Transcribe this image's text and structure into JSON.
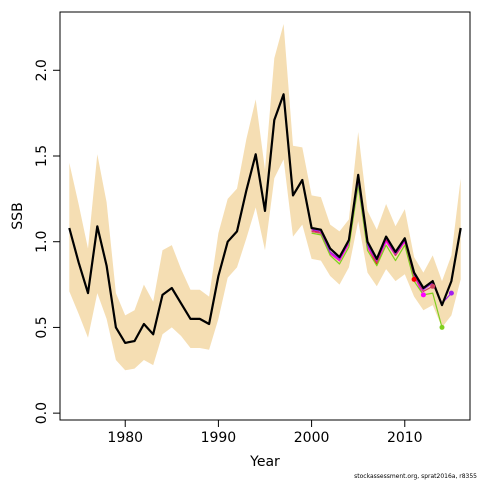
{
  "chart_data": {
    "type": "line",
    "xlabel": "Year",
    "ylabel": "SSB",
    "xlim": [
      1973,
      2017
    ],
    "ylim": [
      -0.04,
      2.34
    ],
    "xticks": [
      "1980",
      "1990",
      "2000",
      "2010"
    ],
    "yticks": [
      "0.0",
      "0.5",
      "1.0",
      "1.5",
      "2.0"
    ],
    "footnote": "stockassessment.org, sprat2016a, r8355",
    "colors": {
      "band": "#f5deb3",
      "main": "#000000",
      "retro": [
        "#ff0000",
        "#ff00ff",
        "#d04060",
        "#7fcf1f",
        "#a020f0"
      ]
    },
    "band": {
      "x": [
        1974,
        1975,
        1976,
        1977,
        1978,
        1979,
        1980,
        1981,
        1982,
        1983,
        1984,
        1985,
        1986,
        1987,
        1988,
        1989,
        1990,
        1991,
        1992,
        1993,
        1994,
        1995,
        1996,
        1997,
        1998,
        1999,
        2000,
        2001,
        2002,
        2003,
        2004,
        2005,
        2006,
        2007,
        2008,
        2009,
        2010,
        2011,
        2012,
        2013,
        2014,
        2015,
        2016
      ],
      "upper": [
        1.46,
        1.22,
        0.96,
        1.51,
        1.23,
        0.7,
        0.57,
        0.6,
        0.75,
        0.65,
        0.95,
        0.98,
        0.84,
        0.72,
        0.72,
        0.68,
        1.05,
        1.25,
        1.31,
        1.6,
        1.83,
        1.42,
        2.07,
        2.27,
        1.56,
        1.55,
        1.27,
        1.26,
        1.1,
        1.06,
        1.13,
        1.64,
        1.18,
        1.07,
        1.22,
        1.09,
        1.19,
        0.91,
        0.82,
        0.92,
        0.77,
        0.92,
        1.37
      ],
      "lower": [
        0.71,
        0.58,
        0.44,
        0.7,
        0.55,
        0.31,
        0.25,
        0.26,
        0.31,
        0.28,
        0.46,
        0.5,
        0.45,
        0.38,
        0.38,
        0.37,
        0.55,
        0.79,
        0.85,
        1.02,
        1.2,
        0.95,
        1.37,
        1.48,
        1.03,
        1.1,
        0.9,
        0.89,
        0.8,
        0.75,
        0.85,
        1.12,
        0.82,
        0.74,
        0.84,
        0.77,
        0.81,
        0.68,
        0.6,
        0.63,
        0.5,
        0.57,
        0.78
      ]
    },
    "series": [
      {
        "x": [
          1974,
          1975,
          1976,
          1977,
          1978,
          1979,
          1980,
          1981,
          1982,
          1983,
          1984,
          1985,
          1986,
          1987,
          1988,
          1989,
          1990,
          1991,
          1992,
          1993,
          1994,
          1995,
          1996,
          1997,
          1998,
          1999,
          2000,
          2001,
          2002,
          2003,
          2004,
          2005,
          2006,
          2007,
          2008,
          2009,
          2010,
          2011,
          2012,
          2013,
          2014,
          2015,
          2016
        ],
        "y": [
          1.08,
          0.88,
          0.7,
          1.09,
          0.86,
          0.5,
          0.41,
          0.42,
          0.52,
          0.46,
          0.69,
          0.73,
          0.64,
          0.55,
          0.55,
          0.52,
          0.8,
          1.0,
          1.06,
          1.3,
          1.51,
          1.18,
          1.71,
          1.86,
          1.27,
          1.36,
          1.08,
          1.07,
          0.96,
          0.91,
          1.01,
          1.39,
          1.0,
          0.9,
          1.03,
          0.94,
          1.02,
          0.82,
          0.73,
          0.77,
          0.63,
          0.77,
          1.08
        ]
      },
      {
        "x": [
          2000,
          2001,
          2002,
          2003,
          2004,
          2005,
          2006,
          2007,
          2008,
          2009,
          2010,
          2011
        ],
        "y": [
          1.07,
          1.05,
          0.93,
          0.89,
          0.99,
          1.36,
          0.97,
          0.87,
          1.01,
          0.92,
          1.0,
          0.78
        ]
      },
      {
        "x": [
          2000,
          2001,
          2002,
          2003,
          2004,
          2005,
          2006,
          2007,
          2008,
          2009,
          2010,
          2011,
          2012
        ],
        "y": [
          1.06,
          1.05,
          0.93,
          0.89,
          0.99,
          1.35,
          0.97,
          0.88,
          1.0,
          0.92,
          1.0,
          0.8,
          0.69
        ]
      },
      {
        "x": [
          2000,
          2001,
          2002,
          2003,
          2004,
          2005,
          2006,
          2007,
          2008,
          2009,
          2010,
          2011,
          2012,
          2013
        ],
        "y": [
          1.06,
          1.05,
          0.94,
          0.9,
          1.0,
          1.35,
          0.98,
          0.88,
          1.02,
          0.92,
          1.01,
          0.8,
          0.71,
          0.74
        ]
      },
      {
        "x": [
          2000,
          2001,
          2002,
          2003,
          2004,
          2005,
          2006,
          2007,
          2008,
          2009,
          2010,
          2011,
          2012,
          2013,
          2014
        ],
        "y": [
          1.05,
          1.04,
          0.92,
          0.87,
          0.97,
          1.33,
          0.95,
          0.86,
          0.98,
          0.89,
          0.98,
          0.77,
          0.69,
          0.7,
          0.5
        ]
      },
      {
        "x": [
          2000,
          2001,
          2002,
          2003,
          2004,
          2005,
          2006,
          2007,
          2008,
          2009,
          2010,
          2011,
          2012,
          2013,
          2014,
          2015
        ],
        "y": [
          1.07,
          1.06,
          0.94,
          0.9,
          1.0,
          1.36,
          0.98,
          0.89,
          1.02,
          0.93,
          1.01,
          0.81,
          0.72,
          0.76,
          0.64,
          0.7
        ]
      }
    ]
  }
}
